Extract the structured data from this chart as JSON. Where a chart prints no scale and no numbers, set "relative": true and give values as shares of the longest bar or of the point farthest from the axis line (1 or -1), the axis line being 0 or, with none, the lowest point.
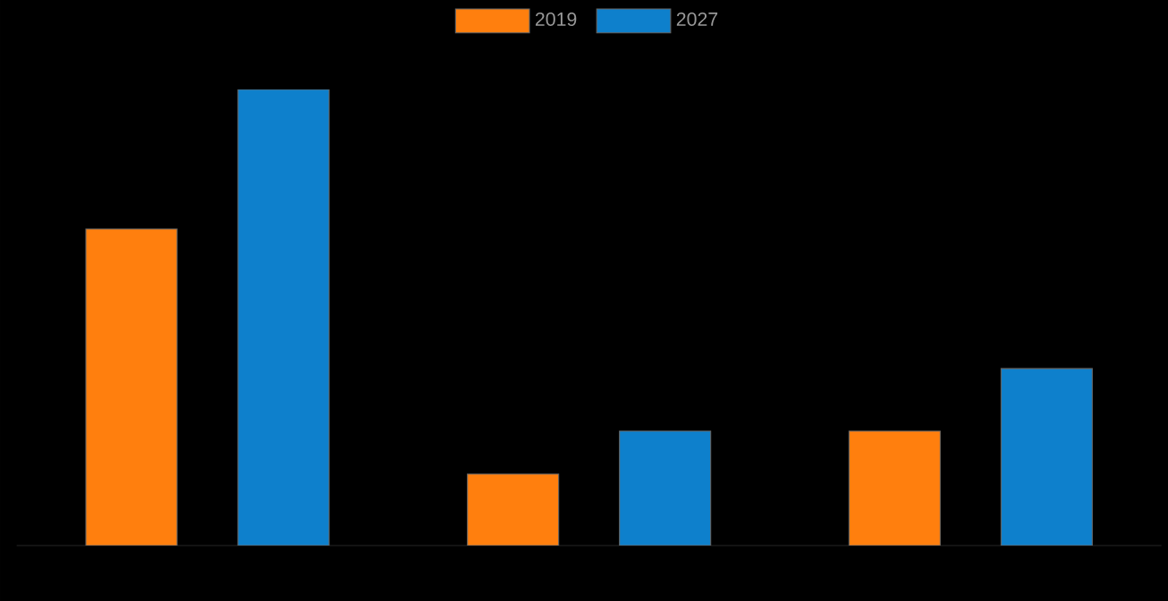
{
  "chart_data": {
    "type": "bar",
    "categories": [
      null,
      null,
      null
    ],
    "relative": true,
    "legend": "top",
    "series": [
      {
        "name": "2019",
        "color": "#ff7f0e",
        "values": [
          0.694,
          0.157,
          0.251
        ]
      },
      {
        "name": "2027",
        "color": "#0e80cc",
        "values": [
          1.0,
          0.251,
          0.388
        ]
      }
    ]
  }
}
